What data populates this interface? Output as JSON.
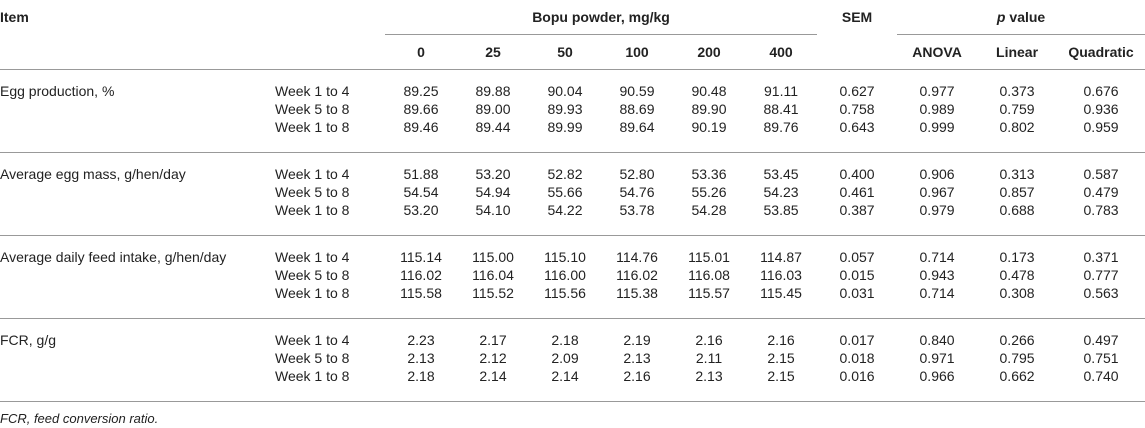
{
  "header": {
    "item": "Item",
    "dose_group": "Bopu powder, mg/kg",
    "doses": [
      "0",
      "25",
      "50",
      "100",
      "200",
      "400"
    ],
    "sem": "SEM",
    "p_symbol": "p",
    "p_word": "value",
    "p_tests": [
      "ANOVA",
      "Linear",
      "Quadratic"
    ]
  },
  "groups": [
    {
      "item": "Egg production, %",
      "rows": [
        {
          "period": "Week 1 to 4",
          "values": [
            "89.25",
            "89.88",
            "90.04",
            "90.59",
            "90.48",
            "91.11"
          ],
          "sem": "0.627",
          "p": [
            "0.977",
            "0.373",
            "0.676"
          ]
        },
        {
          "period": "Week 5 to 8",
          "values": [
            "89.66",
            "89.00",
            "89.93",
            "88.69",
            "89.90",
            "88.41"
          ],
          "sem": "0.758",
          "p": [
            "0.989",
            "0.759",
            "0.936"
          ]
        },
        {
          "period": "Week 1 to 8",
          "values": [
            "89.46",
            "89.44",
            "89.99",
            "89.64",
            "90.19",
            "89.76"
          ],
          "sem": "0.643",
          "p": [
            "0.999",
            "0.802",
            "0.959"
          ]
        }
      ]
    },
    {
      "item": "Average egg mass, g/hen/day",
      "rows": [
        {
          "period": "Week 1 to 4",
          "values": [
            "51.88",
            "53.20",
            "52.82",
            "52.80",
            "53.36",
            "53.45"
          ],
          "sem": "0.400",
          "p": [
            "0.906",
            "0.313",
            "0.587"
          ]
        },
        {
          "period": "Week 5 to 8",
          "values": [
            "54.54",
            "54.94",
            "55.66",
            "54.76",
            "55.26",
            "54.23"
          ],
          "sem": "0.461",
          "p": [
            "0.967",
            "0.857",
            "0.479"
          ]
        },
        {
          "period": "Week 1 to 8",
          "values": [
            "53.20",
            "54.10",
            "54.22",
            "53.78",
            "54.28",
            "53.85"
          ],
          "sem": "0.387",
          "p": [
            "0.979",
            "0.688",
            "0.783"
          ]
        }
      ]
    },
    {
      "item": "Average daily feed intake, g/hen/day",
      "rows": [
        {
          "period": "Week 1 to 4",
          "values": [
            "115.14",
            "115.00",
            "115.10",
            "114.76",
            "115.01",
            "114.87"
          ],
          "sem": "0.057",
          "p": [
            "0.714",
            "0.173",
            "0.371"
          ]
        },
        {
          "period": "Week 5 to 8",
          "values": [
            "116.02",
            "116.04",
            "116.00",
            "116.02",
            "116.08",
            "116.03"
          ],
          "sem": "0.015",
          "p": [
            "0.943",
            "0.478",
            "0.777"
          ]
        },
        {
          "period": "Week 1 to 8",
          "values": [
            "115.58",
            "115.52",
            "115.56",
            "115.38",
            "115.57",
            "115.45"
          ],
          "sem": "0.031",
          "p": [
            "0.714",
            "0.308",
            "0.563"
          ]
        }
      ]
    },
    {
      "item": "FCR, g/g",
      "rows": [
        {
          "period": "Week 1 to 4",
          "values": [
            "2.23",
            "2.17",
            "2.18",
            "2.19",
            "2.16",
            "2.16"
          ],
          "sem": "0.017",
          "p": [
            "0.840",
            "0.266",
            "0.497"
          ]
        },
        {
          "period": "Week 5 to 8",
          "values": [
            "2.13",
            "2.12",
            "2.09",
            "2.13",
            "2.11",
            "2.15"
          ],
          "sem": "0.018",
          "p": [
            "0.971",
            "0.795",
            "0.751"
          ]
        },
        {
          "period": "Week 1 to 8",
          "values": [
            "2.18",
            "2.14",
            "2.14",
            "2.16",
            "2.13",
            "2.15"
          ],
          "sem": "0.016",
          "p": [
            "0.966",
            "0.662",
            "0.740"
          ]
        }
      ]
    }
  ],
  "footnote": "FCR, feed conversion ratio."
}
